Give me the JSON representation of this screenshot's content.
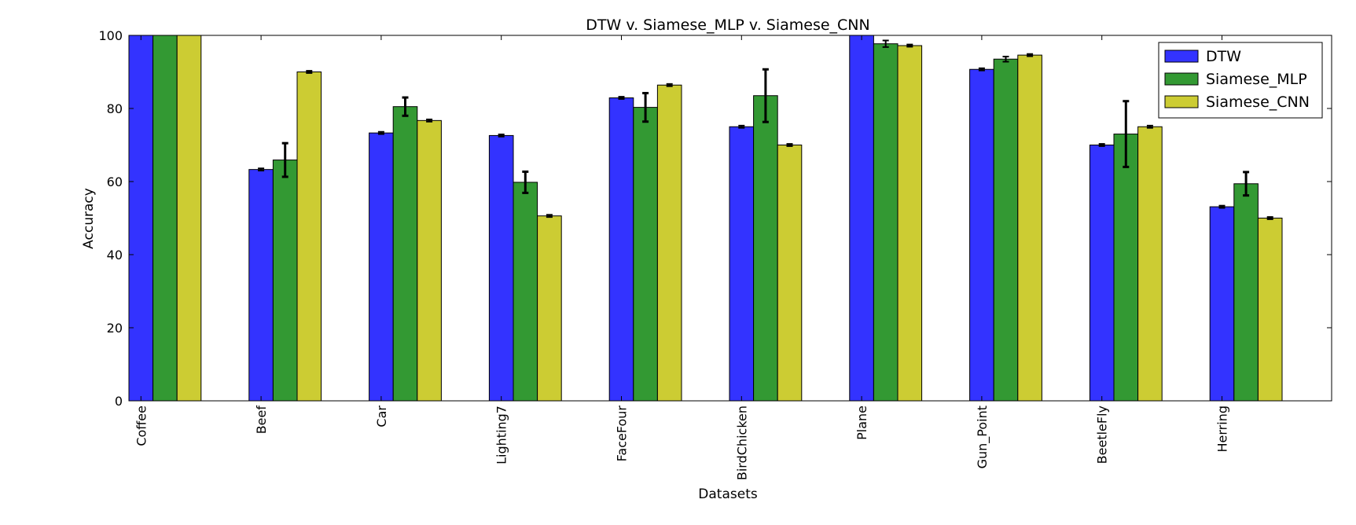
{
  "chart_data": {
    "type": "bar",
    "title": "DTW v. Siamese_MLP v. Siamese_CNN",
    "xlabel": "Datasets",
    "ylabel": "Accuracy",
    "ylim": [
      0,
      100
    ],
    "yticks": [
      0,
      20,
      40,
      60,
      80,
      100
    ],
    "grid": false,
    "legend_position": "top-right",
    "categories": [
      "Coffee",
      "Beef",
      "Car",
      "Lighting7",
      "FaceFour",
      "BirdChicken",
      "Plane",
      "Gun_Point",
      "BeetleFly",
      "Herring"
    ],
    "series": [
      {
        "name": "DTW",
        "color": "#3333ff",
        "values": [
          100,
          63.3,
          73.3,
          72.6,
          82.9,
          75,
          100,
          90.7,
          70,
          53.1
        ],
        "errors": [
          0,
          0.3,
          0.3,
          0.3,
          0.3,
          0.3,
          0,
          0.3,
          0.3,
          0.3
        ]
      },
      {
        "name": "Siamese_MLP",
        "color": "#339933",
        "values": [
          100,
          65.9,
          80.5,
          59.8,
          80.3,
          83.5,
          97.7,
          93.5,
          73,
          59.4
        ],
        "errors": [
          0,
          4.6,
          2.5,
          2.9,
          3.9,
          7.2,
          0.9,
          0.7,
          9,
          3.2
        ]
      },
      {
        "name": "Siamese_CNN",
        "color": "#cccc33",
        "values": [
          100,
          90,
          76.7,
          50.6,
          86.4,
          70,
          97.2,
          94.6,
          75,
          50
        ],
        "errors": [
          0,
          0.3,
          0.3,
          0.3,
          0.3,
          0.3,
          0.3,
          0.3,
          0.3,
          0.3
        ]
      }
    ]
  }
}
